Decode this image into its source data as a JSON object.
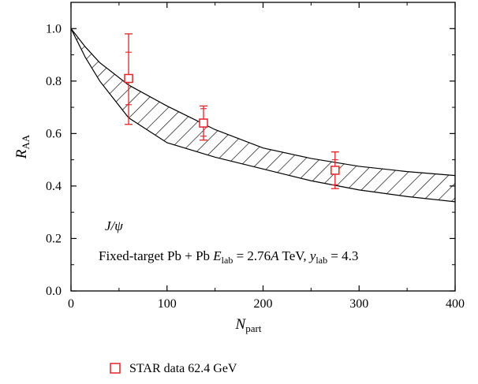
{
  "chart_data": {
    "type": "scatter",
    "xlabel": "N",
    "xlabel_sub": "part",
    "ylabel": "R",
    "ylabel_sub": "AA",
    "xlim": [
      0,
      400
    ],
    "ylim": [
      0.0,
      1.1
    ],
    "xticks": [
      0,
      100,
      200,
      300,
      400
    ],
    "xtick_labels": [
      "0",
      "100",
      "200",
      "300",
      "400"
    ],
    "yticks": [
      0.0,
      0.2,
      0.4,
      0.6,
      0.8,
      1.0
    ],
    "ytick_labels": [
      "0.0",
      "0.2",
      "0.4",
      "0.6",
      "0.8",
      "1.0"
    ],
    "grid": false,
    "legend_position": "below-left",
    "annotation_particle": "J/ψ",
    "annotation_system": {
      "prefix": "Fixed-target Pb + Pb ",
      "e_symbol": "E",
      "e_sub": "lab",
      "e_value": " = 2.76",
      "a_symbol": "A",
      "e_unit": " TeV, ",
      "y_symbol": "y",
      "y_sub": "lab",
      "y_value": " = 4.3"
    },
    "band": {
      "x": [
        0,
        15,
        30,
        60,
        100,
        150,
        200,
        250,
        300,
        350,
        400
      ],
      "upper": [
        1.0,
        0.93,
        0.87,
        0.785,
        0.705,
        0.615,
        0.545,
        0.505,
        0.475,
        0.455,
        0.44
      ],
      "lower": [
        1.0,
        0.89,
        0.8,
        0.66,
        0.565,
        0.51,
        0.465,
        0.42,
        0.385,
        0.36,
        0.34
      ]
    },
    "series": [
      {
        "name": "STAR data 62.4 GeV",
        "color": "#e0242a",
        "marker": "open-square",
        "points": [
          {
            "x": 60,
            "y": 0.81,
            "err_hi": 0.98,
            "err_lo": 0.635,
            "inner_hi": 0.91,
            "inner_lo": 0.71
          },
          {
            "x": 138,
            "y": 0.64,
            "err_hi": 0.705,
            "err_lo": 0.575,
            "inner_hi": 0.695,
            "inner_lo": 0.59
          },
          {
            "x": 275,
            "y": 0.46,
            "err_hi": 0.53,
            "err_lo": 0.39,
            "inner_hi": 0.5,
            "inner_lo": 0.405
          }
        ]
      }
    ]
  }
}
